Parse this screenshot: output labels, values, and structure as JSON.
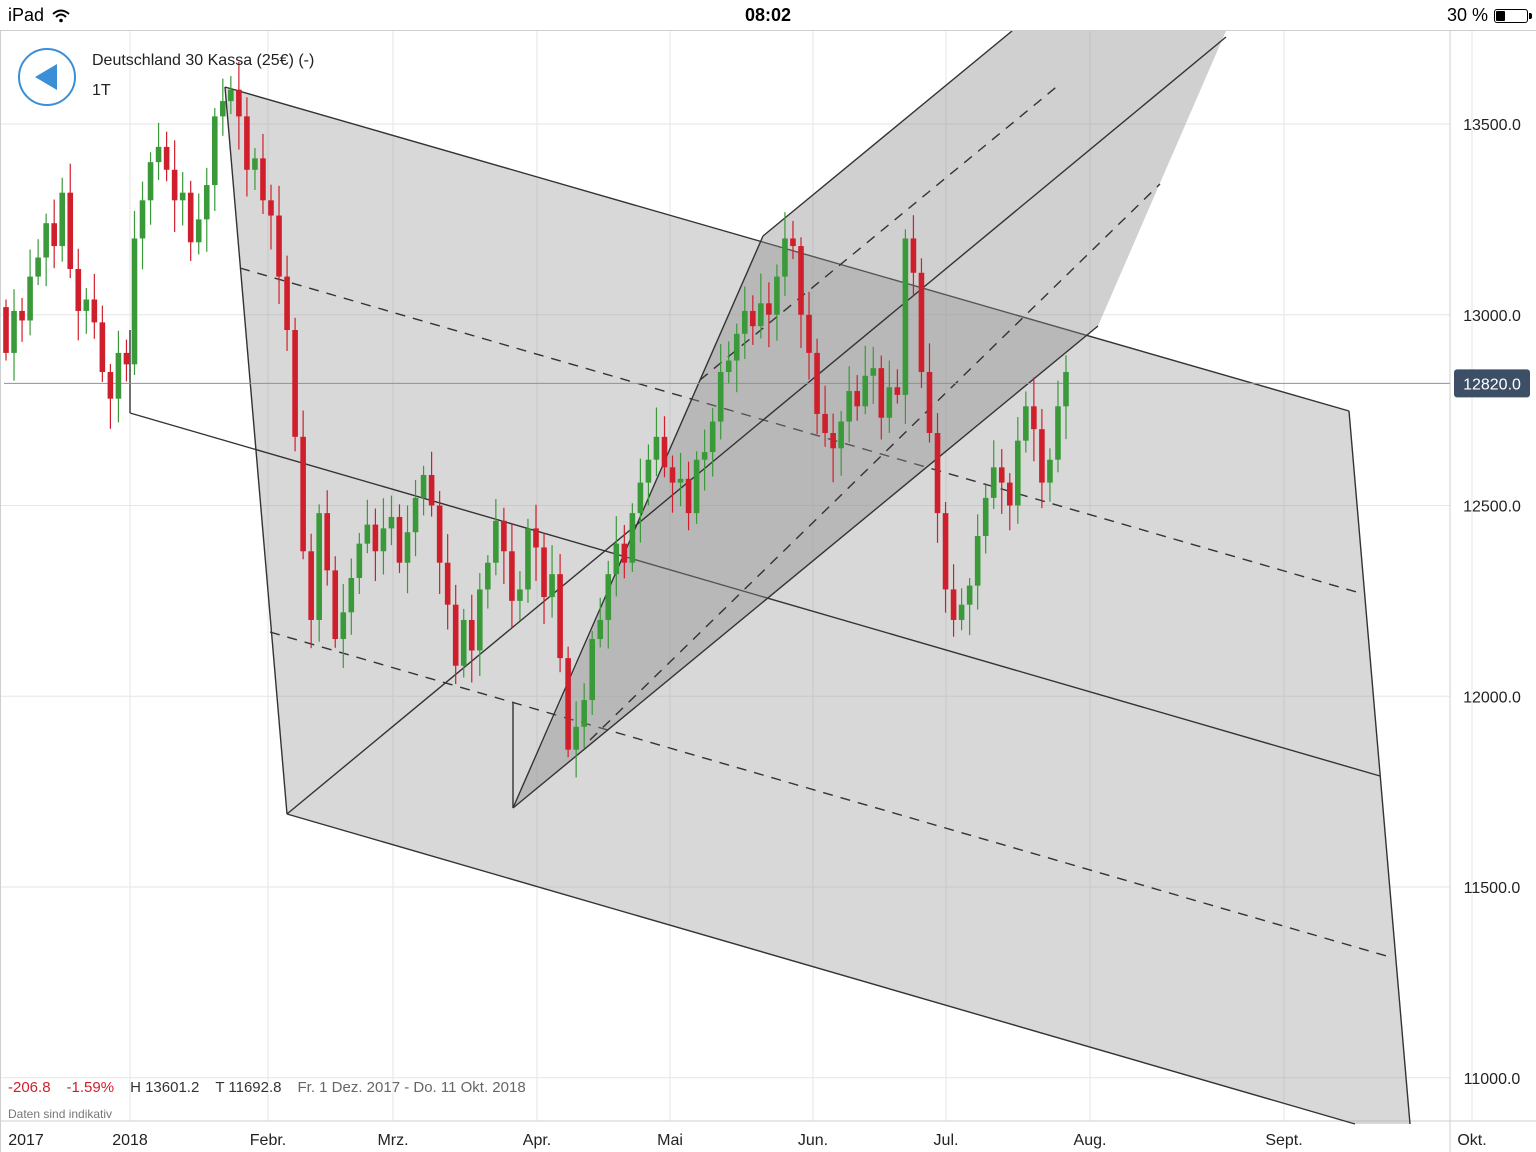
{
  "status_bar": {
    "device": "iPad",
    "time": "08:02",
    "battery_text": "30 %",
    "battery_level": 0.3
  },
  "header": {
    "title": "Deutschland 30 Kassa (25€) (-)",
    "timeframe": "1T"
  },
  "footer": {
    "change": "-206.8",
    "change_pct": "-1.59%",
    "high": "H 13601.2",
    "low": "T 11692.8",
    "range": "Fr. 1 Dez. 2017 - Do. 11 Okt. 2018",
    "note": "Daten sind indikativ"
  },
  "chart_data": {
    "type": "candlestick",
    "y_ticks": [
      13500,
      13000,
      12500,
      12000,
      11500,
      11000
    ],
    "y_tick_labels": [
      "13500.0",
      "13000.0",
      "12500.0",
      "12000.0",
      "11500.0",
      "11000.0"
    ],
    "current_price": 12820.0,
    "current_price_label": "12820.0",
    "x_labels": [
      "2017",
      "2018",
      "Febr.",
      "Mrz.",
      "Apr.",
      "Mai",
      "Jun.",
      "Jul.",
      "Aug.",
      "Sept.",
      "Okt."
    ],
    "colors": {
      "up": "#3a9a3a",
      "down": "#d01f2c",
      "channel_fill": "#bdbdbd",
      "price_label_bg": "#3d4f66"
    },
    "closes": [
      12900,
      13010,
      12985,
      13100,
      13150,
      13240,
      13180,
      13320,
      13120,
      13010,
      13040,
      12980,
      12850,
      12780,
      12900,
      12870,
      13200,
      13300,
      13400,
      13440,
      13380,
      13300,
      13320,
      13190,
      13250,
      13340,
      13520,
      13560,
      13590,
      13520,
      13380,
      13410,
      13300,
      13260,
      13100,
      12960,
      12680,
      12380,
      12200,
      12480,
      12330,
      12150,
      12220,
      12310,
      12400,
      12450,
      12380,
      12440,
      12470,
      12350,
      12430,
      12520,
      12580,
      12500,
      12350,
      12240,
      12080,
      12200,
      12120,
      12280,
      12350,
      12460,
      12380,
      12250,
      12280,
      12440,
      12390,
      12260,
      12320,
      12100,
      11860,
      11920,
      11990,
      12150,
      12200,
      12320,
      12400,
      12350,
      12480,
      12560,
      12620,
      12680,
      12600,
      12560,
      12570,
      12480,
      12620,
      12640,
      12720,
      12850,
      12880,
      12950,
      13010,
      12970,
      13030,
      13000,
      13100,
      13200,
      13180,
      13000,
      12900,
      12740,
      12690,
      12650,
      12720,
      12800,
      12760,
      12840,
      12860,
      12730,
      12810,
      12790,
      13200,
      13110,
      12850,
      12690,
      12480,
      12280,
      12200,
      12240,
      12290,
      12420,
      12520,
      12600,
      12560,
      12500,
      12670,
      12760,
      12700,
      12560,
      12620,
      12760,
      12850
    ],
    "channel_note": "Andrews pitchfork drawing tools"
  }
}
